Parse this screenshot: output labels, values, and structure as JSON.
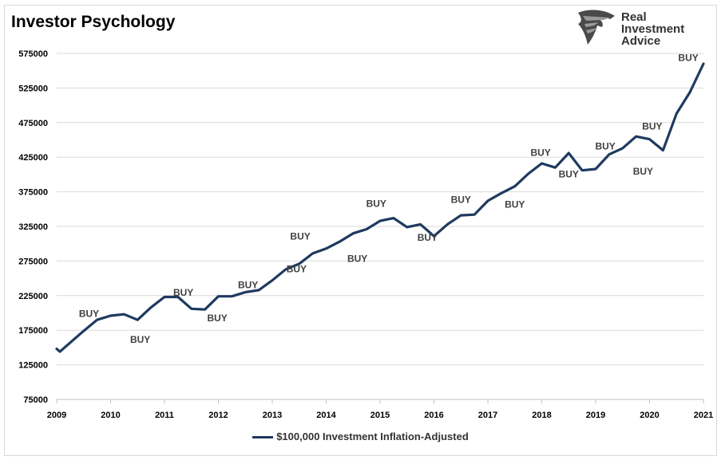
{
  "title": "Investor Psychology",
  "logo": {
    "line1": "Real",
    "line2": "Investment",
    "line3": "Advice",
    "icon": "eagle-head-icon"
  },
  "colors": {
    "series": "#1f3a5f",
    "grid": "#d9d9d9",
    "buy_label": "#404040"
  },
  "chart_data": {
    "type": "line",
    "title": "Investor Psychology",
    "xlabel": "",
    "ylabel": "",
    "ylim": [
      75000,
      575000
    ],
    "xlim": [
      2009,
      2021
    ],
    "yticks": [
      75000,
      125000,
      175000,
      225000,
      275000,
      325000,
      375000,
      425000,
      475000,
      525000,
      575000
    ],
    "xticks": [
      "2009",
      "2010",
      "2011",
      "2012",
      "2013",
      "2014",
      "2015",
      "2016",
      "2017",
      "2018",
      "2019",
      "2020",
      "2021"
    ],
    "grid": true,
    "legend_position": "bottom",
    "series": [
      {
        "name": "$100,000 Investment Inflation-Adjusted",
        "x": [
          2009.0,
          2009.06,
          2009.25,
          2009.5,
          2009.75,
          2010.0,
          2010.25,
          2010.5,
          2010.75,
          2011.0,
          2011.25,
          2011.5,
          2011.75,
          2012.0,
          2012.25,
          2012.5,
          2012.75,
          2013.0,
          2013.25,
          2013.5,
          2013.75,
          2014.0,
          2014.25,
          2014.5,
          2014.75,
          2015.0,
          2015.25,
          2015.5,
          2015.75,
          2016.0,
          2016.25,
          2016.5,
          2016.75,
          2017.0,
          2017.25,
          2017.5,
          2017.75,
          2018.0,
          2018.25,
          2018.5,
          2018.75,
          2019.0,
          2019.25,
          2019.5,
          2019.75,
          2020.0,
          2020.25,
          2020.5,
          2020.75,
          2021.0
        ],
        "y": [
          148000,
          144000,
          157000,
          174000,
          190000,
          196000,
          198000,
          190000,
          208000,
          223000,
          223000,
          206000,
          205000,
          224000,
          224000,
          230000,
          233000,
          247000,
          263000,
          271000,
          286000,
          293000,
          303000,
          315000,
          321000,
          333000,
          337000,
          324000,
          328000,
          311000,
          328000,
          341000,
          342000,
          362000,
          373000,
          383000,
          401000,
          416000,
          410000,
          431000,
          406000,
          408000,
          429000,
          438000,
          455000,
          451000,
          435000,
          488000,
          519000,
          560000
        ]
      }
    ],
    "annotations": [
      {
        "text": "BUY",
        "x": 2009.6,
        "y": 194000
      },
      {
        "text": "BUY",
        "x": 2010.55,
        "y": 157000
      },
      {
        "text": "BUY",
        "x": 2011.35,
        "y": 225000
      },
      {
        "text": "BUY",
        "x": 2011.98,
        "y": 188000
      },
      {
        "text": "BUY",
        "x": 2012.55,
        "y": 236000
      },
      {
        "text": "BUY",
        "x": 2013.45,
        "y": 259000
      },
      {
        "text": "BUY",
        "x": 2013.52,
        "y": 306000
      },
      {
        "text": "BUY",
        "x": 2014.58,
        "y": 274000
      },
      {
        "text": "BUY",
        "x": 2014.93,
        "y": 353000
      },
      {
        "text": "BUY",
        "x": 2015.88,
        "y": 304000
      },
      {
        "text": "BUY",
        "x": 2016.5,
        "y": 359000
      },
      {
        "text": "BUY",
        "x": 2017.5,
        "y": 352000
      },
      {
        "text": "BUY",
        "x": 2017.98,
        "y": 427000
      },
      {
        "text": "BUY",
        "x": 2018.5,
        "y": 396000
      },
      {
        "text": "BUY",
        "x": 2019.18,
        "y": 436000
      },
      {
        "text": "BUY",
        "x": 2019.88,
        "y": 400000
      },
      {
        "text": "BUY",
        "x": 2020.05,
        "y": 465000
      },
      {
        "text": "BUY",
        "x": 2020.72,
        "y": 564000
      }
    ]
  }
}
